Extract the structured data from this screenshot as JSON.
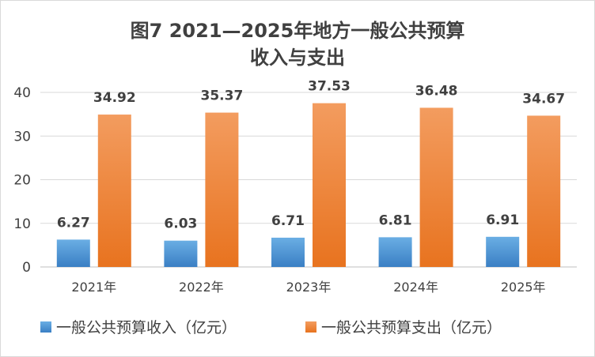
{
  "chart_data": {
    "type": "bar",
    "title_line1": "图7  2021—2025年地方一般公共预算",
    "title_line2": "收入与支出",
    "categories": [
      "2021年",
      "2022年",
      "2023年",
      "2024年",
      "2025年"
    ],
    "series": [
      {
        "name": "一般公共预算收入（亿元）",
        "values": [
          6.27,
          6.03,
          6.71,
          6.81,
          6.91
        ],
        "color_top": "#6aaee4",
        "color_bottom": "#3a7fc4"
      },
      {
        "name": "一般公共预算支出（亿元）",
        "values": [
          34.92,
          35.37,
          37.53,
          36.48,
          34.67
        ],
        "color_top": "#f39c5f",
        "color_bottom": "#e8731f"
      }
    ],
    "ylim": [
      0,
      40
    ],
    "yticks": [
      0,
      10,
      20,
      30,
      40
    ],
    "ytick_labels": [
      "0",
      "10",
      "20",
      "30",
      "40"
    ],
    "grid": true,
    "legend_position": "bottom"
  }
}
